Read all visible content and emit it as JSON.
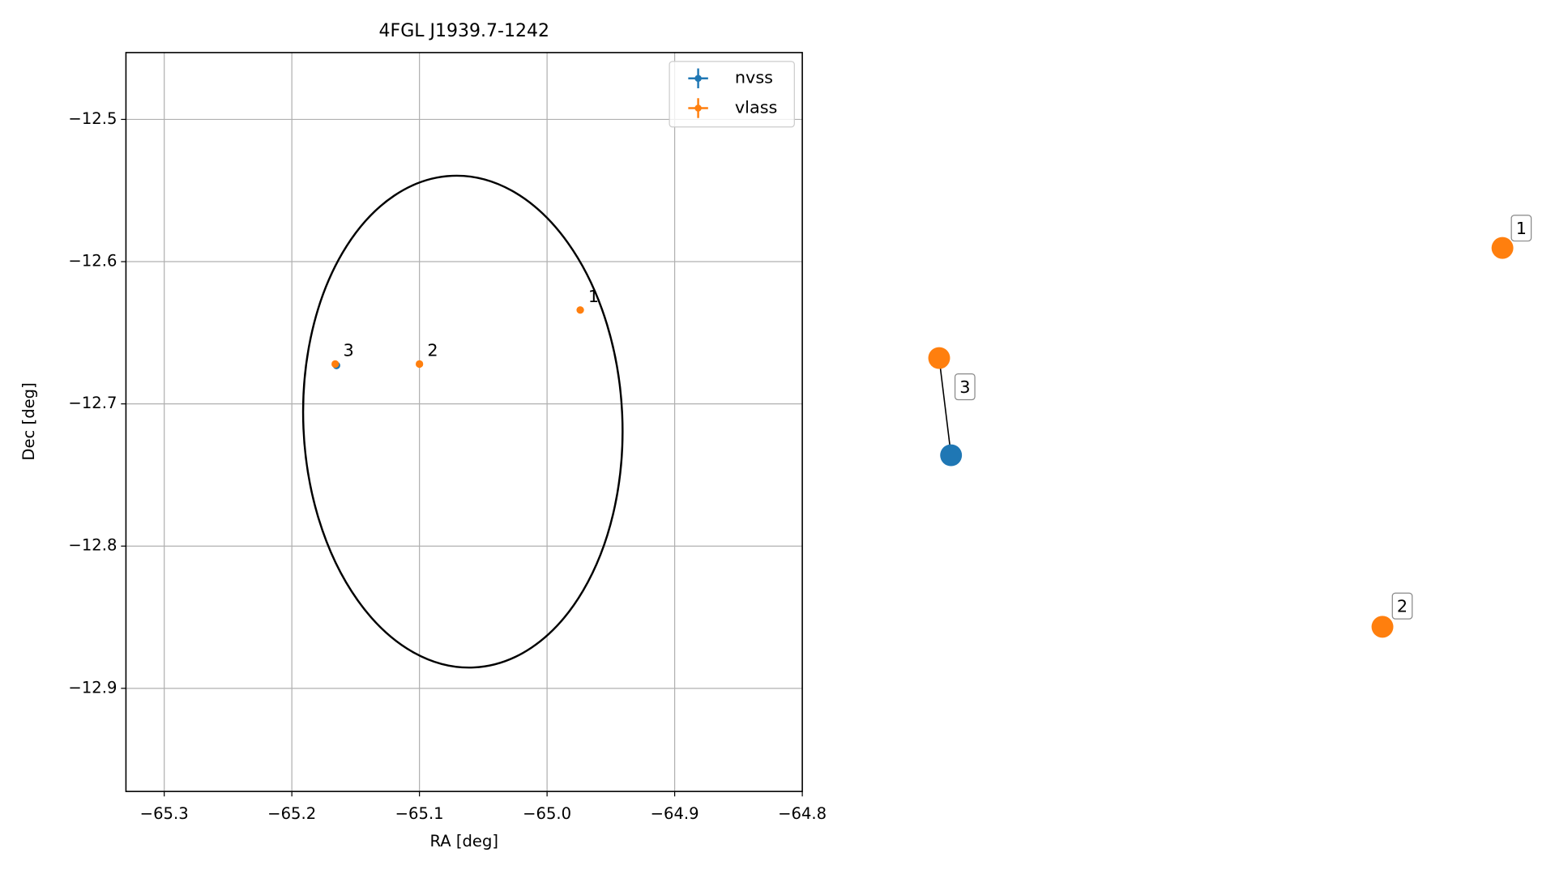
{
  "chart_data": [
    {
      "type": "scatter",
      "title": "4FGL J1939.7-1242",
      "x_label": "RA [deg]",
      "y_label": "Dec [deg]",
      "xlim": [
        -65.33,
        -64.8
      ],
      "ylim": [
        -12.9725,
        -12.453
      ],
      "grid": true,
      "legend": "upper right",
      "xticks": [
        {
          "value": -65.3,
          "label": "−65.3"
        },
        {
          "value": -65.2,
          "label": "−65.2"
        },
        {
          "value": -65.1,
          "label": "−65.1"
        },
        {
          "value": -65.0,
          "label": "−65.0"
        },
        {
          "value": -64.9,
          "label": "−64.9"
        },
        {
          "value": -64.8,
          "label": "−64.8"
        }
      ],
      "yticks": [
        {
          "value": -12.5,
          "label": "−12.5"
        },
        {
          "value": -12.6,
          "label": "−12.6"
        },
        {
          "value": -12.7,
          "label": "−12.7"
        },
        {
          "value": -12.8,
          "label": "−12.8"
        },
        {
          "value": -12.9,
          "label": "−12.9"
        }
      ],
      "ellipse": {
        "center": [
          -65.066,
          -12.7125
        ],
        "x_radius": 0.125,
        "y_radius": 0.173,
        "angle": -2.5,
        "color": "#000000"
      },
      "series": [
        {
          "name": "nvss",
          "color": "#1f77b4",
          "x": [
            -65.165
          ],
          "y": [
            -12.673
          ]
        },
        {
          "name": "vlass",
          "color": "#ff7f0e",
          "x": [
            -64.974,
            -65.1,
            -65.166
          ],
          "y": [
            -12.634,
            -12.672,
            -12.672
          ],
          "labels": [
            "1",
            "2",
            "3"
          ]
        }
      ]
    },
    {
      "type": "graph",
      "nodes": [
        {
          "label": "1",
          "color": "#ff7f0e"
        },
        {
          "label": "2",
          "color": "#ff7f0e"
        },
        {
          "label": "3",
          "color": "#ff7f0e"
        },
        {
          "color": "#1f77b4"
        }
      ]
    }
  ]
}
